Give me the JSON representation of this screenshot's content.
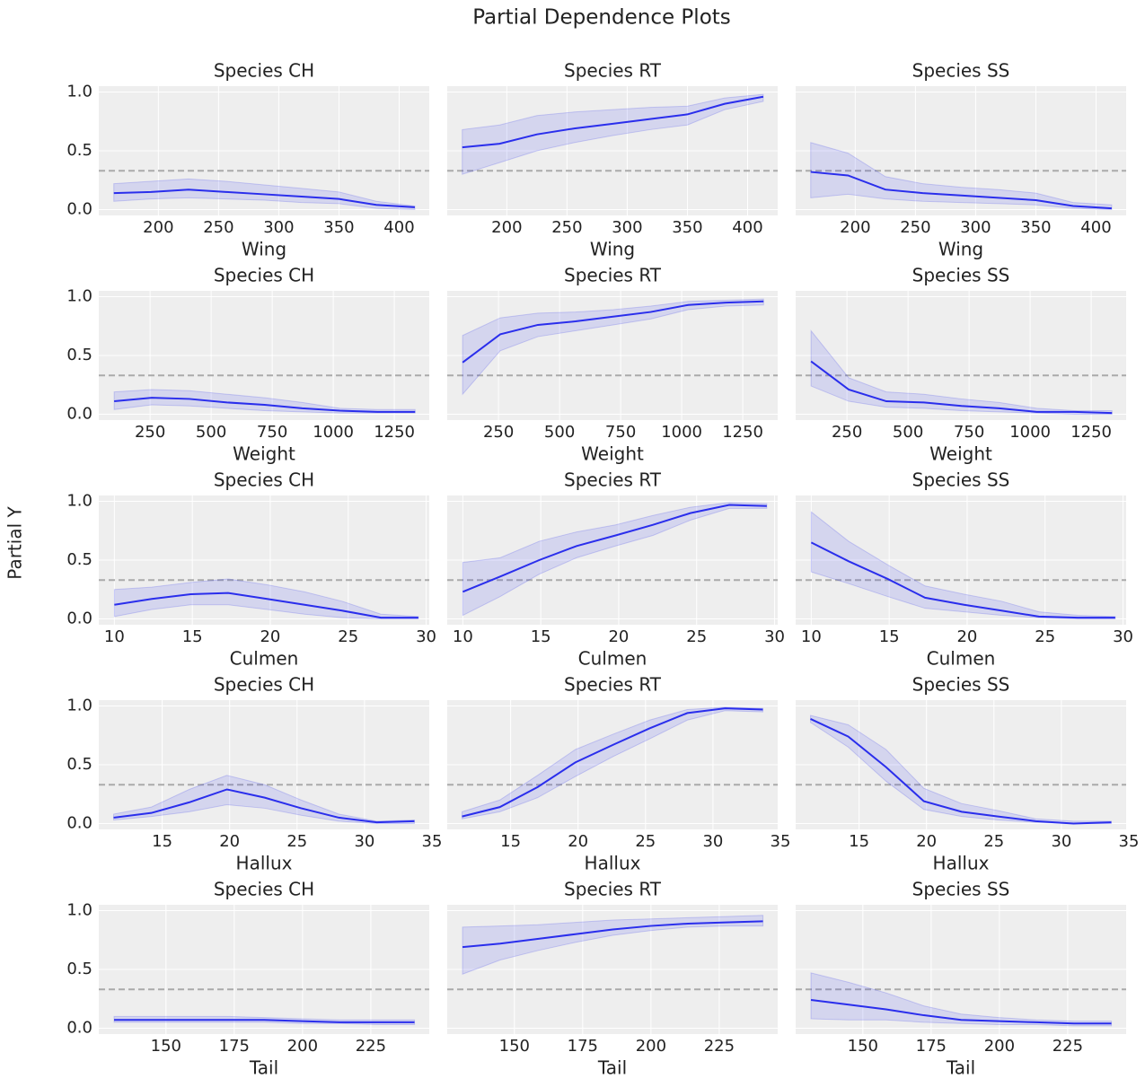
{
  "title": "Partial Dependence Plots",
  "ylabel": "Partial Y",
  "chart_data": [
    {
      "type": "line",
      "title": "Species CH",
      "xlabel": "Wing",
      "x": [
        163,
        194,
        225,
        256,
        288,
        319,
        350,
        381,
        413
      ],
      "values": [
        0.14,
        0.15,
        0.17,
        0.15,
        0.13,
        0.11,
        0.09,
        0.04,
        0.02
      ],
      "lower": [
        0.07,
        0.09,
        0.1,
        0.09,
        0.08,
        0.06,
        0.05,
        0.01,
        0.0
      ],
      "upper": [
        0.22,
        0.24,
        0.26,
        0.24,
        0.21,
        0.18,
        0.15,
        0.07,
        0.03
      ],
      "hline": 0.33,
      "color": "#2a2eec",
      "xlim": [
        150.5,
        425
      ],
      "ylim": [
        -0.05,
        1.05
      ],
      "xticks": [
        200,
        250,
        300,
        350,
        400
      ],
      "yticks": [
        {
          "value": 0,
          "label": "0.0"
        },
        {
          "value": 0.5,
          "label": "0.5"
        },
        {
          "value": 1,
          "label": "1.0"
        }
      ],
      "ytick_labels": true,
      "grid": true
    },
    {
      "type": "line",
      "title": "Species RT",
      "xlabel": "Wing",
      "x": [
        163,
        194,
        225,
        256,
        288,
        319,
        350,
        381,
        413
      ],
      "values": [
        0.53,
        0.56,
        0.64,
        0.69,
        0.73,
        0.77,
        0.81,
        0.9,
        0.96
      ],
      "lower": [
        0.3,
        0.4,
        0.5,
        0.57,
        0.63,
        0.68,
        0.72,
        0.85,
        0.92
      ],
      "upper": [
        0.68,
        0.72,
        0.8,
        0.83,
        0.85,
        0.87,
        0.88,
        0.95,
        0.98
      ],
      "hline": 0.33,
      "color": "#2a2eec",
      "xlim": [
        150.5,
        425
      ],
      "ylim": [
        -0.05,
        1.05
      ],
      "xticks": [
        200,
        250,
        300,
        350,
        400
      ],
      "yticks": [
        0,
        0.5,
        1
      ],
      "ytick_labels": false,
      "grid": true
    },
    {
      "type": "line",
      "title": "Species SS",
      "xlabel": "Wing",
      "x": [
        163,
        194,
        225,
        256,
        288,
        319,
        350,
        381,
        413
      ],
      "values": [
        0.32,
        0.29,
        0.17,
        0.14,
        0.12,
        0.1,
        0.08,
        0.03,
        0.01
      ],
      "lower": [
        0.1,
        0.13,
        0.09,
        0.07,
        0.06,
        0.05,
        0.04,
        0.01,
        0.0
      ],
      "upper": [
        0.57,
        0.48,
        0.28,
        0.22,
        0.19,
        0.17,
        0.14,
        0.06,
        0.04
      ],
      "hline": 0.33,
      "color": "#2a2eec",
      "xlim": [
        150.5,
        425
      ],
      "ylim": [
        -0.05,
        1.05
      ],
      "xticks": [
        200,
        250,
        300,
        350,
        400
      ],
      "yticks": [
        0,
        0.5,
        1
      ],
      "ytick_labels": false,
      "grid": true
    },
    {
      "type": "line",
      "title": "Species CH",
      "xlabel": "Weight",
      "x": [
        103,
        257,
        411,
        565,
        719,
        873,
        1027,
        1181,
        1335
      ],
      "values": [
        0.11,
        0.14,
        0.13,
        0.1,
        0.08,
        0.05,
        0.03,
        0.02,
        0.02
      ],
      "lower": [
        0.04,
        0.08,
        0.07,
        0.05,
        0.03,
        0.02,
        0.01,
        0.01,
        0.01
      ],
      "upper": [
        0.19,
        0.21,
        0.2,
        0.17,
        0.14,
        0.1,
        0.05,
        0.04,
        0.04
      ],
      "hline": 0.33,
      "color": "#2a2eec",
      "xlim": [
        40,
        1393
      ],
      "ylim": [
        -0.05,
        1.05
      ],
      "xticks": [
        250,
        500,
        750,
        1000,
        1250
      ],
      "yticks": [
        {
          "value": 0,
          "label": "0.0"
        },
        {
          "value": 0.5,
          "label": "0.5"
        },
        {
          "value": 1,
          "label": "1.0"
        }
      ],
      "ytick_labels": true,
      "grid": true
    },
    {
      "type": "line",
      "title": "Species RT",
      "xlabel": "Weight",
      "x": [
        103,
        257,
        411,
        565,
        719,
        873,
        1027,
        1181,
        1335
      ],
      "values": [
        0.44,
        0.68,
        0.76,
        0.79,
        0.83,
        0.87,
        0.93,
        0.95,
        0.96
      ],
      "lower": [
        0.17,
        0.54,
        0.66,
        0.71,
        0.76,
        0.81,
        0.89,
        0.92,
        0.93
      ],
      "upper": [
        0.67,
        0.82,
        0.86,
        0.87,
        0.89,
        0.92,
        0.96,
        0.97,
        0.98
      ],
      "hline": 0.33,
      "color": "#2a2eec",
      "xlim": [
        40,
        1393
      ],
      "ylim": [
        -0.05,
        1.05
      ],
      "xticks": [
        250,
        500,
        750,
        1000,
        1250
      ],
      "yticks": [
        0,
        0.5,
        1
      ],
      "ytick_labels": false,
      "grid": true
    },
    {
      "type": "line",
      "title": "Species SS",
      "xlabel": "Weight",
      "x": [
        103,
        257,
        411,
        565,
        719,
        873,
        1027,
        1181,
        1335
      ],
      "values": [
        0.45,
        0.21,
        0.11,
        0.1,
        0.07,
        0.05,
        0.02,
        0.02,
        0.01
      ],
      "lower": [
        0.24,
        0.11,
        0.06,
        0.05,
        0.03,
        0.02,
        0.01,
        0.0,
        0.0
      ],
      "upper": [
        0.71,
        0.31,
        0.19,
        0.17,
        0.13,
        0.1,
        0.05,
        0.03,
        0.03
      ],
      "hline": 0.33,
      "color": "#2a2eec",
      "xlim": [
        40,
        1393
      ],
      "ylim": [
        -0.05,
        1.05
      ],
      "xticks": [
        250,
        500,
        750,
        1000,
        1250
      ],
      "yticks": [
        0,
        0.5,
        1
      ],
      "ytick_labels": false,
      "grid": true
    },
    {
      "type": "line",
      "title": "Species CH",
      "xlabel": "Culmen",
      "x": [
        10,
        12.4,
        14.9,
        17.3,
        19.8,
        22.2,
        24.6,
        27.1,
        29.5
      ],
      "values": [
        0.12,
        0.17,
        0.21,
        0.22,
        0.17,
        0.12,
        0.07,
        0.01,
        0.01
      ],
      "lower": [
        0.02,
        0.08,
        0.12,
        0.12,
        0.08,
        0.04,
        0.01,
        0.0,
        0.0
      ],
      "upper": [
        0.25,
        0.27,
        0.31,
        0.34,
        0.29,
        0.23,
        0.15,
        0.04,
        0.02
      ],
      "hline": 0.33,
      "color": "#2a2eec",
      "xlim": [
        9,
        30.2
      ],
      "ylim": [
        -0.05,
        1.05
      ],
      "xticks": [
        10,
        15,
        20,
        25,
        30
      ],
      "yticks": [
        {
          "value": 0,
          "label": "0.0"
        },
        {
          "value": 0.5,
          "label": "0.5"
        },
        {
          "value": 1,
          "label": "1.0"
        }
      ],
      "ytick_labels": true,
      "grid": true
    },
    {
      "type": "line",
      "title": "Species RT",
      "xlabel": "Culmen",
      "x": [
        10,
        12.4,
        14.9,
        17.3,
        19.8,
        22.2,
        24.6,
        27.1,
        29.5
      ],
      "values": [
        0.23,
        0.36,
        0.5,
        0.62,
        0.71,
        0.8,
        0.9,
        0.97,
        0.96
      ],
      "lower": [
        0.03,
        0.19,
        0.38,
        0.52,
        0.62,
        0.71,
        0.84,
        0.94,
        0.94
      ],
      "upper": [
        0.48,
        0.52,
        0.66,
        0.74,
        0.8,
        0.88,
        0.95,
        0.99,
        0.98
      ],
      "hline": 0.33,
      "color": "#2a2eec",
      "xlim": [
        9,
        30.2
      ],
      "ylim": [
        -0.05,
        1.05
      ],
      "xticks": [
        10,
        15,
        20,
        25,
        30
      ],
      "yticks": [
        0,
        0.5,
        1
      ],
      "ytick_labels": false,
      "grid": true
    },
    {
      "type": "line",
      "title": "Species SS",
      "xlabel": "Culmen",
      "x": [
        10,
        12.4,
        14.9,
        17.3,
        19.8,
        22.2,
        24.6,
        27.1,
        29.5
      ],
      "values": [
        0.65,
        0.49,
        0.34,
        0.18,
        0.12,
        0.07,
        0.02,
        0.01,
        0.01
      ],
      "lower": [
        0.4,
        0.3,
        0.19,
        0.09,
        0.06,
        0.03,
        0.01,
        0.0,
        0.0
      ],
      "upper": [
        0.91,
        0.66,
        0.46,
        0.28,
        0.21,
        0.15,
        0.06,
        0.03,
        0.02
      ],
      "hline": 0.33,
      "color": "#2a2eec",
      "xlim": [
        9,
        30.2
      ],
      "ylim": [
        -0.05,
        1.05
      ],
      "xticks": [
        10,
        15,
        20,
        25,
        30
      ],
      "yticks": [
        0,
        0.5,
        1
      ],
      "ytick_labels": false,
      "grid": true
    },
    {
      "type": "line",
      "title": "Species CH",
      "xlabel": "Hallux",
      "x": [
        11.4,
        14.2,
        17,
        19.8,
        22.6,
        25.3,
        28.1,
        30.9,
        33.7
      ],
      "values": [
        0.05,
        0.09,
        0.18,
        0.29,
        0.22,
        0.13,
        0.05,
        0.01,
        0.02
      ],
      "lower": [
        0.03,
        0.06,
        0.1,
        0.16,
        0.13,
        0.07,
        0.02,
        0.0,
        0.0
      ],
      "upper": [
        0.08,
        0.14,
        0.29,
        0.41,
        0.33,
        0.2,
        0.08,
        0.02,
        0.03
      ],
      "hline": 0.33,
      "color": "#2a2eec",
      "xlim": [
        10.3,
        34.8
      ],
      "ylim": [
        -0.05,
        1.05
      ],
      "xticks": [
        15,
        20,
        25,
        30,
        35
      ],
      "yticks": [
        {
          "value": 0,
          "label": "0.0"
        },
        {
          "value": 0.5,
          "label": "0.5"
        },
        {
          "value": 1,
          "label": "1.0"
        }
      ],
      "ytick_labels": true,
      "grid": true
    },
    {
      "type": "line",
      "title": "Species RT",
      "xlabel": "Hallux",
      "x": [
        11.4,
        14.2,
        17,
        19.8,
        22.6,
        25.3,
        28.1,
        30.9,
        33.7
      ],
      "values": [
        0.06,
        0.14,
        0.31,
        0.52,
        0.67,
        0.81,
        0.94,
        0.98,
        0.97
      ],
      "lower": [
        0.04,
        0.1,
        0.22,
        0.4,
        0.57,
        0.72,
        0.88,
        0.96,
        0.95
      ],
      "upper": [
        0.1,
        0.2,
        0.41,
        0.63,
        0.76,
        0.88,
        0.97,
        0.99,
        0.98
      ],
      "hline": 0.33,
      "color": "#2a2eec",
      "xlim": [
        10.3,
        34.8
      ],
      "ylim": [
        -0.05,
        1.05
      ],
      "xticks": [
        15,
        20,
        25,
        30,
        35
      ],
      "yticks": [
        0,
        0.5,
        1
      ],
      "ytick_labels": false,
      "grid": true
    },
    {
      "type": "line",
      "title": "Species SS",
      "xlabel": "Hallux",
      "x": [
        11.4,
        14.2,
        17,
        19.8,
        22.6,
        25.3,
        28.1,
        30.9,
        33.7
      ],
      "values": [
        0.89,
        0.74,
        0.48,
        0.19,
        0.1,
        0.06,
        0.02,
        0.0,
        0.01
      ],
      "lower": [
        0.86,
        0.65,
        0.36,
        0.12,
        0.06,
        0.03,
        0.01,
        0.0,
        0.0
      ],
      "upper": [
        0.92,
        0.84,
        0.63,
        0.3,
        0.17,
        0.11,
        0.04,
        0.02,
        0.02
      ],
      "hline": 0.33,
      "color": "#2a2eec",
      "xlim": [
        10.3,
        34.8
      ],
      "ylim": [
        -0.05,
        1.05
      ],
      "xticks": [
        15,
        20,
        25,
        30,
        35
      ],
      "yticks": [
        0,
        0.5,
        1
      ],
      "ytick_labels": false,
      "grid": true
    },
    {
      "type": "line",
      "title": "Species CH",
      "xlabel": "Tail",
      "x": [
        131,
        144.8,
        158.5,
        172.3,
        186,
        199.8,
        213.5,
        227.3,
        241
      ],
      "values": [
        0.07,
        0.07,
        0.07,
        0.07,
        0.07,
        0.06,
        0.05,
        0.05,
        0.05
      ],
      "lower": [
        0.05,
        0.05,
        0.05,
        0.05,
        0.05,
        0.04,
        0.04,
        0.03,
        0.03
      ],
      "upper": [
        0.1,
        0.1,
        0.1,
        0.1,
        0.09,
        0.08,
        0.07,
        0.07,
        0.07
      ],
      "hline": 0.33,
      "color": "#2a2eec",
      "xlim": [
        125.4,
        246.4
      ],
      "ylim": [
        -0.05,
        1.05
      ],
      "xticks": [
        150,
        175,
        200,
        225
      ],
      "yticks": [
        {
          "value": 0,
          "label": "0.0"
        },
        {
          "value": 0.5,
          "label": "0.5"
        },
        {
          "value": 1,
          "label": "1.0"
        }
      ],
      "ytick_labels": true,
      "grid": true
    },
    {
      "type": "line",
      "title": "Species RT",
      "xlabel": "Tail",
      "x": [
        131,
        144.8,
        158.5,
        172.3,
        186,
        199.8,
        213.5,
        227.3,
        241
      ],
      "values": [
        0.69,
        0.72,
        0.76,
        0.8,
        0.84,
        0.87,
        0.89,
        0.9,
        0.91
      ],
      "lower": [
        0.46,
        0.58,
        0.66,
        0.73,
        0.79,
        0.83,
        0.86,
        0.87,
        0.87
      ],
      "upper": [
        0.86,
        0.87,
        0.88,
        0.9,
        0.92,
        0.93,
        0.94,
        0.95,
        0.96
      ],
      "hline": 0.33,
      "color": "#2a2eec",
      "xlim": [
        125.4,
        246.4
      ],
      "ylim": [
        -0.05,
        1.05
      ],
      "xticks": [
        150,
        175,
        200,
        225
      ],
      "yticks": [
        0,
        0.5,
        1
      ],
      "ytick_labels": false,
      "grid": true
    },
    {
      "type": "line",
      "title": "Species SS",
      "xlabel": "Tail",
      "x": [
        131,
        144.8,
        158.5,
        172.3,
        186,
        199.8,
        213.5,
        227.3,
        241
      ],
      "values": [
        0.24,
        0.2,
        0.16,
        0.11,
        0.07,
        0.06,
        0.05,
        0.04,
        0.04
      ],
      "lower": [
        0.08,
        0.07,
        0.07,
        0.05,
        0.04,
        0.03,
        0.03,
        0.02,
        0.02
      ],
      "upper": [
        0.47,
        0.39,
        0.3,
        0.19,
        0.12,
        0.09,
        0.07,
        0.06,
        0.06
      ],
      "hline": 0.33,
      "color": "#2a2eec",
      "xlim": [
        125.4,
        246.4
      ],
      "ylim": [
        -0.05,
        1.05
      ],
      "xticks": [
        150,
        175,
        200,
        225
      ],
      "yticks": [
        0,
        0.5,
        1
      ],
      "ytick_labels": false,
      "grid": true
    }
  ]
}
